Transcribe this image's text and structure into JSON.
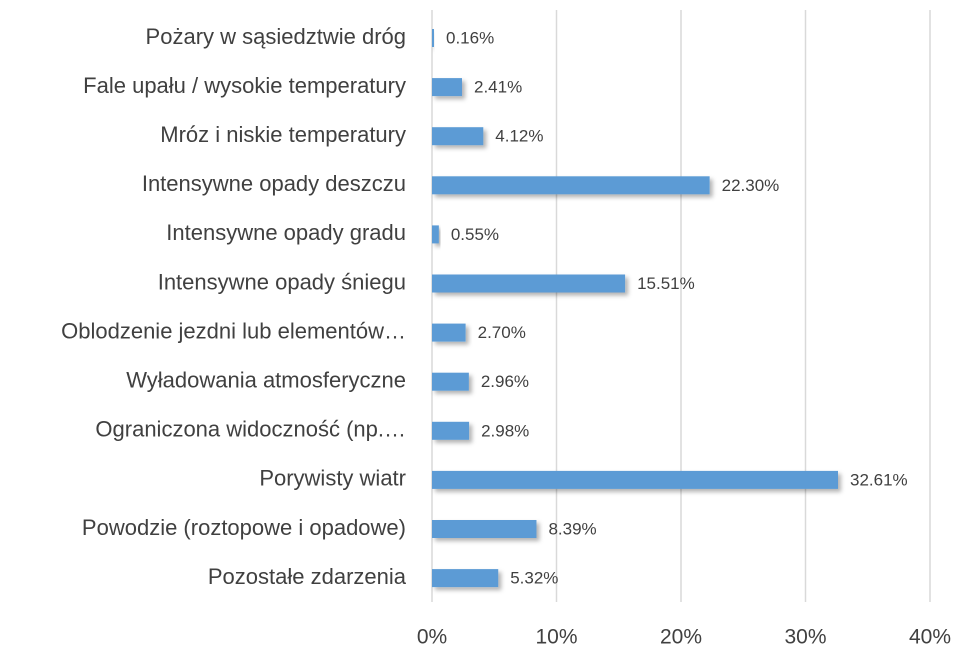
{
  "chart_data": {
    "type": "bar",
    "orientation": "horizontal",
    "categories": [
      "Pożary w sąsiedztwie dróg",
      "Fale upału / wysokie temperatury",
      "Mróz i niskie temperatury",
      "Intensywne opady deszczu",
      "Intensywne opady gradu",
      "Intensywne opady śniegu",
      "Oblodzenie jezdni lub elementów…",
      "Wyładowania atmosferyczne",
      "Ograniczona widoczność (np.…",
      "Porywisty wiatr",
      "Powodzie (roztopowe i opadowe)",
      "Pozostałe zdarzenia"
    ],
    "values": [
      0.16,
      2.41,
      4.12,
      22.3,
      0.55,
      15.51,
      2.7,
      2.96,
      2.98,
      32.61,
      8.39,
      5.32
    ],
    "value_labels": [
      "0.16%",
      "2.41%",
      "4.12%",
      "22.30%",
      "0.55%",
      "15.51%",
      "2.70%",
      "2.96%",
      "2.98%",
      "32.61%",
      "8.39%",
      "5.32%"
    ],
    "color": "#5b9bd5",
    "xlim": [
      0,
      40
    ],
    "xticks": [
      {
        "value": 0,
        "label": "0%"
      },
      {
        "value": 10,
        "label": "10%"
      },
      {
        "value": 20,
        "label": "20%"
      },
      {
        "value": 30,
        "label": "30%"
      },
      {
        "value": 40,
        "label": "40%"
      }
    ],
    "grid": true
  }
}
